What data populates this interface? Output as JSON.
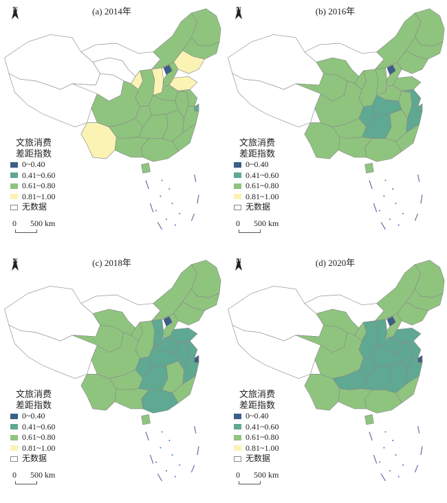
{
  "panels": [
    {
      "title": "(a) 2014年",
      "provinces": {
        "xinjiang": "none",
        "tibet": "none",
        "qinghai": "none",
        "gansu": "none",
        "inner_mongolia_w": "none",
        "inner_mongolia_e": "c3",
        "heilongjiang": "c3",
        "jilin": "c3",
        "liaoning": "c4",
        "beijing": "c1",
        "ningxia": "c4",
        "shaanxi": "c3",
        "shanxi": "c4",
        "hebei": "c3",
        "shandong": "c4",
        "sichuan": "c3",
        "yunnan": "c4",
        "guizhou": "c3",
        "chongqing": "c3",
        "hubei": "c3",
        "henan": "c3",
        "hunan": "c3",
        "jiangxi": "c3",
        "anhui": "c3",
        "jiangsu": "c3",
        "shanghai": "c2",
        "zhejiang": "c3",
        "fujian": "c3",
        "guangdong": "c3",
        "guangxi": "c3",
        "hainan": "c3"
      }
    },
    {
      "title": "(b) 2016年",
      "provinces": {
        "xinjiang": "none",
        "tibet": "none",
        "qinghai": "c3",
        "gansu": "c3",
        "inner_mongolia_w": "none",
        "inner_mongolia_e": "c3",
        "heilongjiang": "c3",
        "jilin": "c3",
        "liaoning": "c3",
        "beijing": "c1",
        "ningxia": "c3",
        "shaanxi": "c3",
        "shanxi": "c3",
        "hebei": "c3",
        "shandong": "c3",
        "sichuan": "c3",
        "yunnan": "c3",
        "guizhou": "c3",
        "chongqing": "c2",
        "hubei": "c2",
        "henan": "c3",
        "hunan": "c2",
        "jiangxi": "c3",
        "anhui": "c3",
        "jiangsu": "c2",
        "shanghai": "c2",
        "zhejiang": "c2",
        "fujian": "c3",
        "guangdong": "c3",
        "guangxi": "c3",
        "hainan": "c3"
      }
    },
    {
      "title": "(c) 2018年",
      "provinces": {
        "xinjiang": "none",
        "tibet": "none",
        "qinghai": "c3",
        "gansu": "c3",
        "inner_mongolia_w": "none",
        "inner_mongolia_e": "c3",
        "heilongjiang": "c3",
        "jilin": "c3",
        "liaoning": "c3",
        "beijing": "c1",
        "ningxia": "c3",
        "shaanxi": "c3",
        "shanxi": "c2",
        "hebei": "c3",
        "shandong": "c2",
        "sichuan": "c3",
        "yunnan": "c3",
        "guizhou": "c3",
        "chongqing": "c2",
        "hubei": "c2",
        "henan": "c2",
        "hunan": "c2",
        "jiangxi": "c3",
        "anhui": "c2",
        "jiangsu": "c2",
        "shanghai": "c1",
        "zhejiang": "c2",
        "fujian": "c3",
        "guangdong": "c2",
        "guangxi": "c3",
        "hainan": "c3"
      }
    },
    {
      "title": "(d) 2020年",
      "provinces": {
        "xinjiang": "none",
        "tibet": "none",
        "qinghai": "c3",
        "gansu": "c3",
        "inner_mongolia_w": "none",
        "inner_mongolia_e": "c3",
        "heilongjiang": "c3",
        "jilin": "c3",
        "liaoning": "c3",
        "beijing": "c1",
        "ningxia": "c3",
        "shaanxi": "c2",
        "shanxi": "c2",
        "hebei": "c3",
        "shandong": "c2",
        "sichuan": "c3",
        "yunnan": "c3",
        "guizhou": "c2",
        "chongqing": "c2",
        "hubei": "c2",
        "henan": "c2",
        "hunan": "c2",
        "jiangxi": "c2",
        "anhui": "c2",
        "jiangsu": "c2",
        "shanghai": "c1",
        "zhejiang": "c2",
        "fujian": "c3",
        "guangdong": "c3",
        "guangxi": "c3",
        "hainan": "c3"
      }
    }
  ],
  "north_label": "N",
  "legend": {
    "title": "文旅消费\n差距指数",
    "items": [
      {
        "key": "c1",
        "label": "0~0.40",
        "color": "#3b5f86"
      },
      {
        "key": "c2",
        "label": "0.41~0.60",
        "color": "#5fa891"
      },
      {
        "key": "c3",
        "label": "0.61~0.80",
        "color": "#8fc47e"
      },
      {
        "key": "c4",
        "label": "0.81~1.00",
        "color": "#fbf3b4"
      },
      {
        "key": "none",
        "label": "无数据",
        "color": "#ffffff"
      }
    ]
  },
  "scale_label": "0     500 km",
  "scale_zero": "0",
  "scale_text": "500 km"
}
